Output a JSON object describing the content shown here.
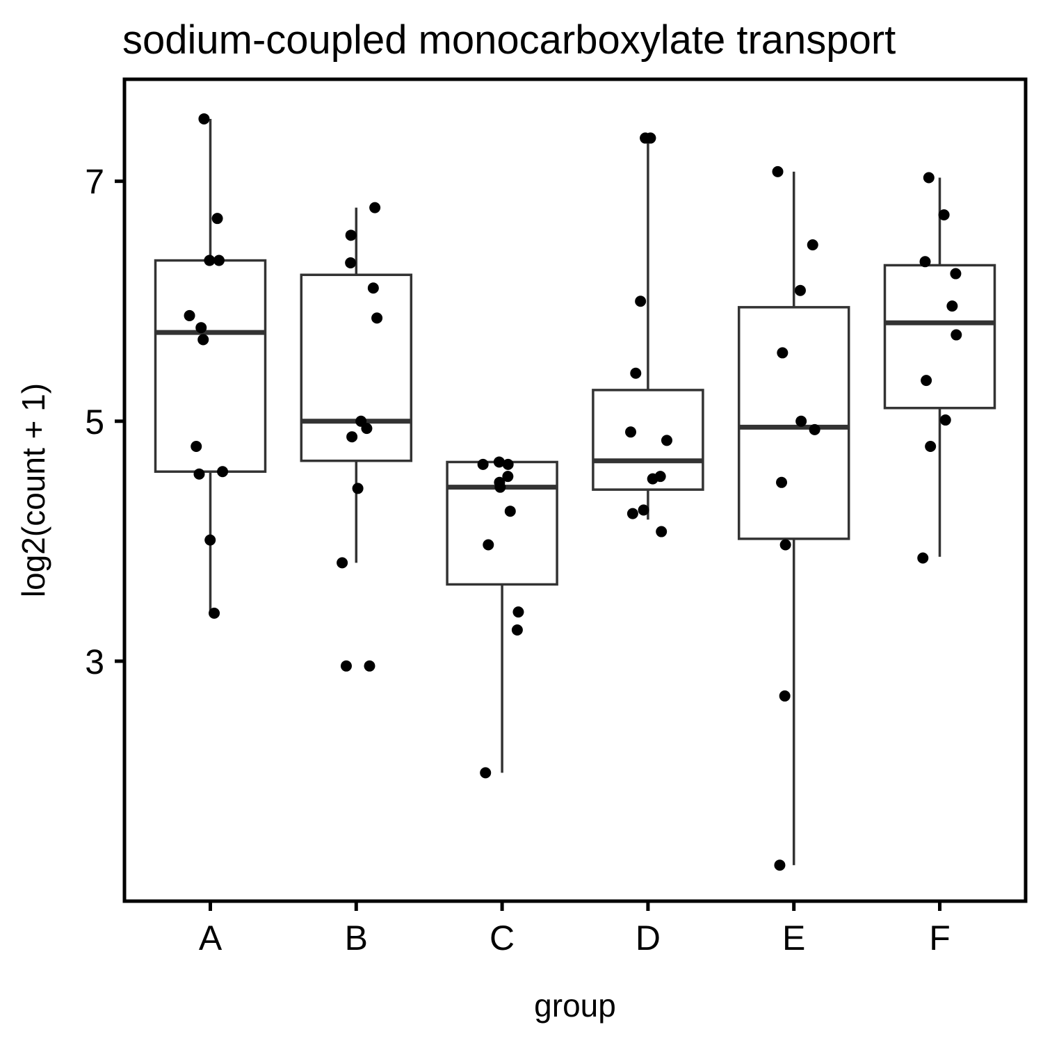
{
  "chart_data": {
    "type": "box",
    "title": "sodium-coupled monocarboxylate transport",
    "xlabel": "group",
    "ylabel": "log2(count + 1)",
    "categories": [
      "A",
      "B",
      "C",
      "D",
      "E",
      "F"
    ],
    "y_ticks": [
      3,
      5,
      7
    ],
    "ylim": [
      1.0,
      7.85
    ],
    "grid": false,
    "legend": "none",
    "boxes": [
      {
        "group": "A",
        "min": 3.4,
        "q1": 4.58,
        "median": 5.74,
        "q3": 6.34,
        "max": 7.52
      },
      {
        "group": "B",
        "min": 3.82,
        "q1": 4.67,
        "median": 5.0,
        "q3": 6.22,
        "max": 6.78
      },
      {
        "group": "C",
        "min": 2.07,
        "q1": 3.64,
        "median": 4.45,
        "q3": 4.66,
        "max": 4.66
      },
      {
        "group": "D",
        "min": 4.18,
        "q1": 4.43,
        "median": 4.67,
        "q3": 5.26,
        "max": 7.36
      },
      {
        "group": "E",
        "min": 1.3,
        "q1": 4.02,
        "median": 4.95,
        "q3": 5.95,
        "max": 7.08
      },
      {
        "group": "F",
        "min": 3.87,
        "q1": 5.11,
        "median": 5.82,
        "q3": 6.3,
        "max": 7.03
      }
    ],
    "points": {
      "A": [
        7.52,
        6.69,
        6.34,
        6.34,
        5.88,
        5.78,
        5.68,
        4.79,
        4.58,
        4.56,
        4.01,
        3.4
      ],
      "B": [
        6.78,
        6.55,
        6.32,
        6.11,
        5.86,
        5.0,
        4.94,
        4.87,
        4.44,
        3.82,
        2.96,
        2.96
      ],
      "C": [
        4.66,
        4.64,
        4.64,
        4.54,
        4.49,
        4.45,
        4.25,
        3.97,
        3.41,
        3.26,
        2.07
      ],
      "D": [
        7.36,
        7.36,
        6.0,
        5.4,
        4.91,
        4.84,
        4.54,
        4.52,
        4.26,
        4.23,
        4.08
      ],
      "E": [
        7.08,
        6.47,
        6.09,
        5.57,
        5.0,
        4.93,
        4.49,
        3.97,
        2.71,
        1.3
      ],
      "F": [
        7.03,
        6.72,
        6.33,
        6.23,
        5.96,
        5.72,
        5.34,
        5.01,
        4.79,
        3.86
      ]
    },
    "colors": {
      "box_stroke": "#333333",
      "point": "#000000",
      "axis": "#000000"
    }
  }
}
